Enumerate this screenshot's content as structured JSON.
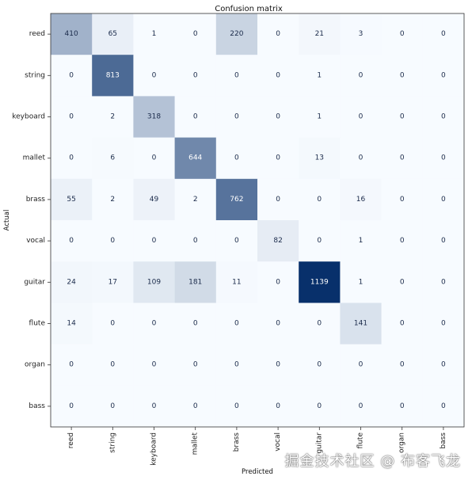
{
  "chart_data": {
    "type": "heatmap",
    "title": "Confusion matrix",
    "xlabel": "Predicted",
    "ylabel": "Actual",
    "labels": [
      "reed",
      "string",
      "keyboard",
      "mallet",
      "brass",
      "vocal",
      "guitar",
      "flute",
      "organ",
      "bass"
    ],
    "matrix": [
      [
        410,
        65,
        1,
        0,
        220,
        0,
        21,
        3,
        0,
        0
      ],
      [
        0,
        813,
        0,
        0,
        0,
        0,
        1,
        0,
        0,
        0
      ],
      [
        0,
        2,
        318,
        0,
        0,
        0,
        1,
        0,
        0,
        0
      ],
      [
        0,
        6,
        0,
        644,
        0,
        0,
        13,
        0,
        0,
        0
      ],
      [
        55,
        2,
        49,
        2,
        762,
        0,
        0,
        16,
        0,
        0
      ],
      [
        0,
        0,
        0,
        0,
        0,
        82,
        0,
        1,
        0,
        0
      ],
      [
        24,
        17,
        109,
        181,
        11,
        0,
        1139,
        1,
        0,
        0
      ],
      [
        14,
        0,
        0,
        0,
        0,
        0,
        0,
        141,
        0,
        0
      ],
      [
        0,
        0,
        0,
        0,
        0,
        0,
        0,
        0,
        0,
        0
      ],
      [
        0,
        0,
        0,
        0,
        0,
        0,
        0,
        0,
        0,
        0
      ]
    ],
    "colormap": "Blues",
    "color_min": "#f7fbff",
    "color_max": "#08306b",
    "vmin": 0,
    "vmax": 1139
  },
  "watermark": "掘金技术社区 @ 布客飞龙"
}
